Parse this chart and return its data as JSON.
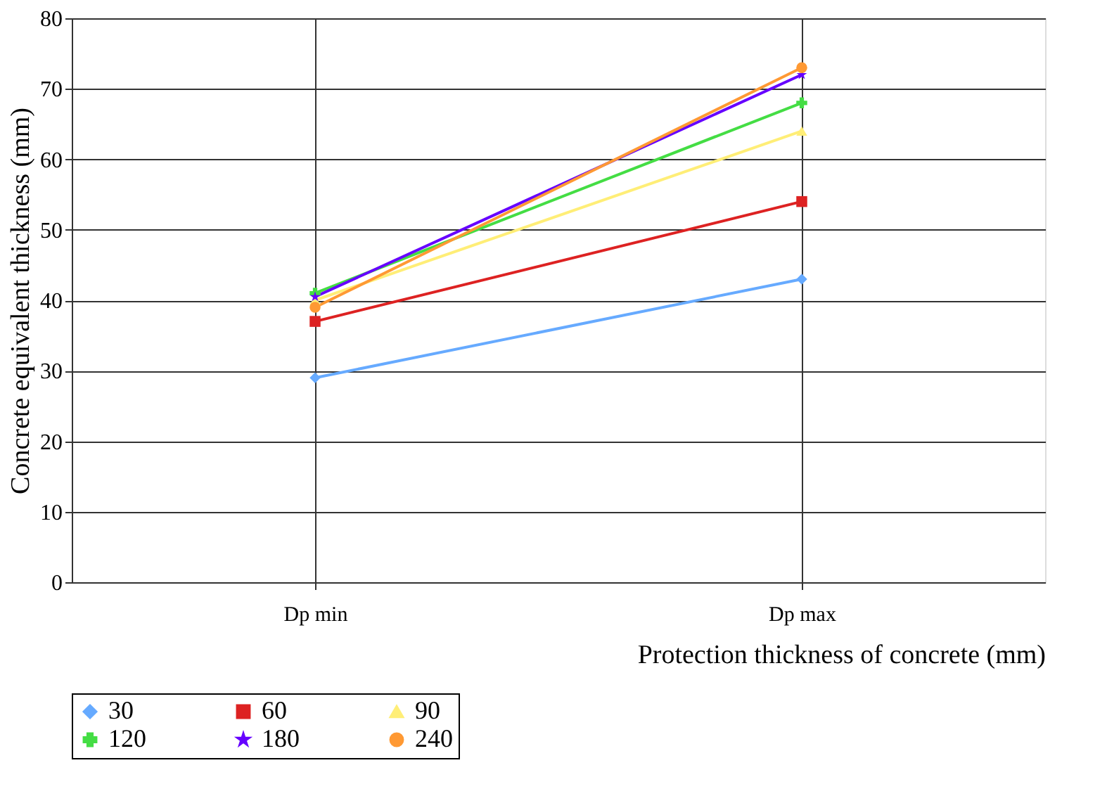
{
  "chart_data": {
    "type": "line",
    "xlabel": "Protection thickness of concrete (mm)",
    "ylabel": "Concrete equivalent thickness (mm)",
    "categories": [
      "Dp min",
      "Dp max"
    ],
    "series": [
      {
        "name": "30",
        "color": "#66aaff",
        "marker": "diamond",
        "values": [
          29,
          43
        ]
      },
      {
        "name": "60",
        "color": "#dd2222",
        "marker": "square",
        "values": [
          37,
          54
        ]
      },
      {
        "name": "90",
        "color": "#ffee77",
        "marker": "triangle",
        "values": [
          40,
          64
        ]
      },
      {
        "name": "120",
        "color": "#44dd44",
        "marker": "cross",
        "values": [
          41,
          68
        ]
      },
      {
        "name": "180",
        "color": "#6600ff",
        "marker": "star",
        "values": [
          40.5,
          72
        ]
      },
      {
        "name": "240",
        "color": "#ff9933",
        "marker": "circle",
        "values": [
          39,
          73
        ]
      }
    ],
    "ylim": [
      0,
      80
    ],
    "yticks": [
      0,
      10,
      20,
      30,
      40,
      50,
      60,
      70,
      80
    ],
    "grid": true,
    "legend": "bottom",
    "line_style": "solid"
  }
}
